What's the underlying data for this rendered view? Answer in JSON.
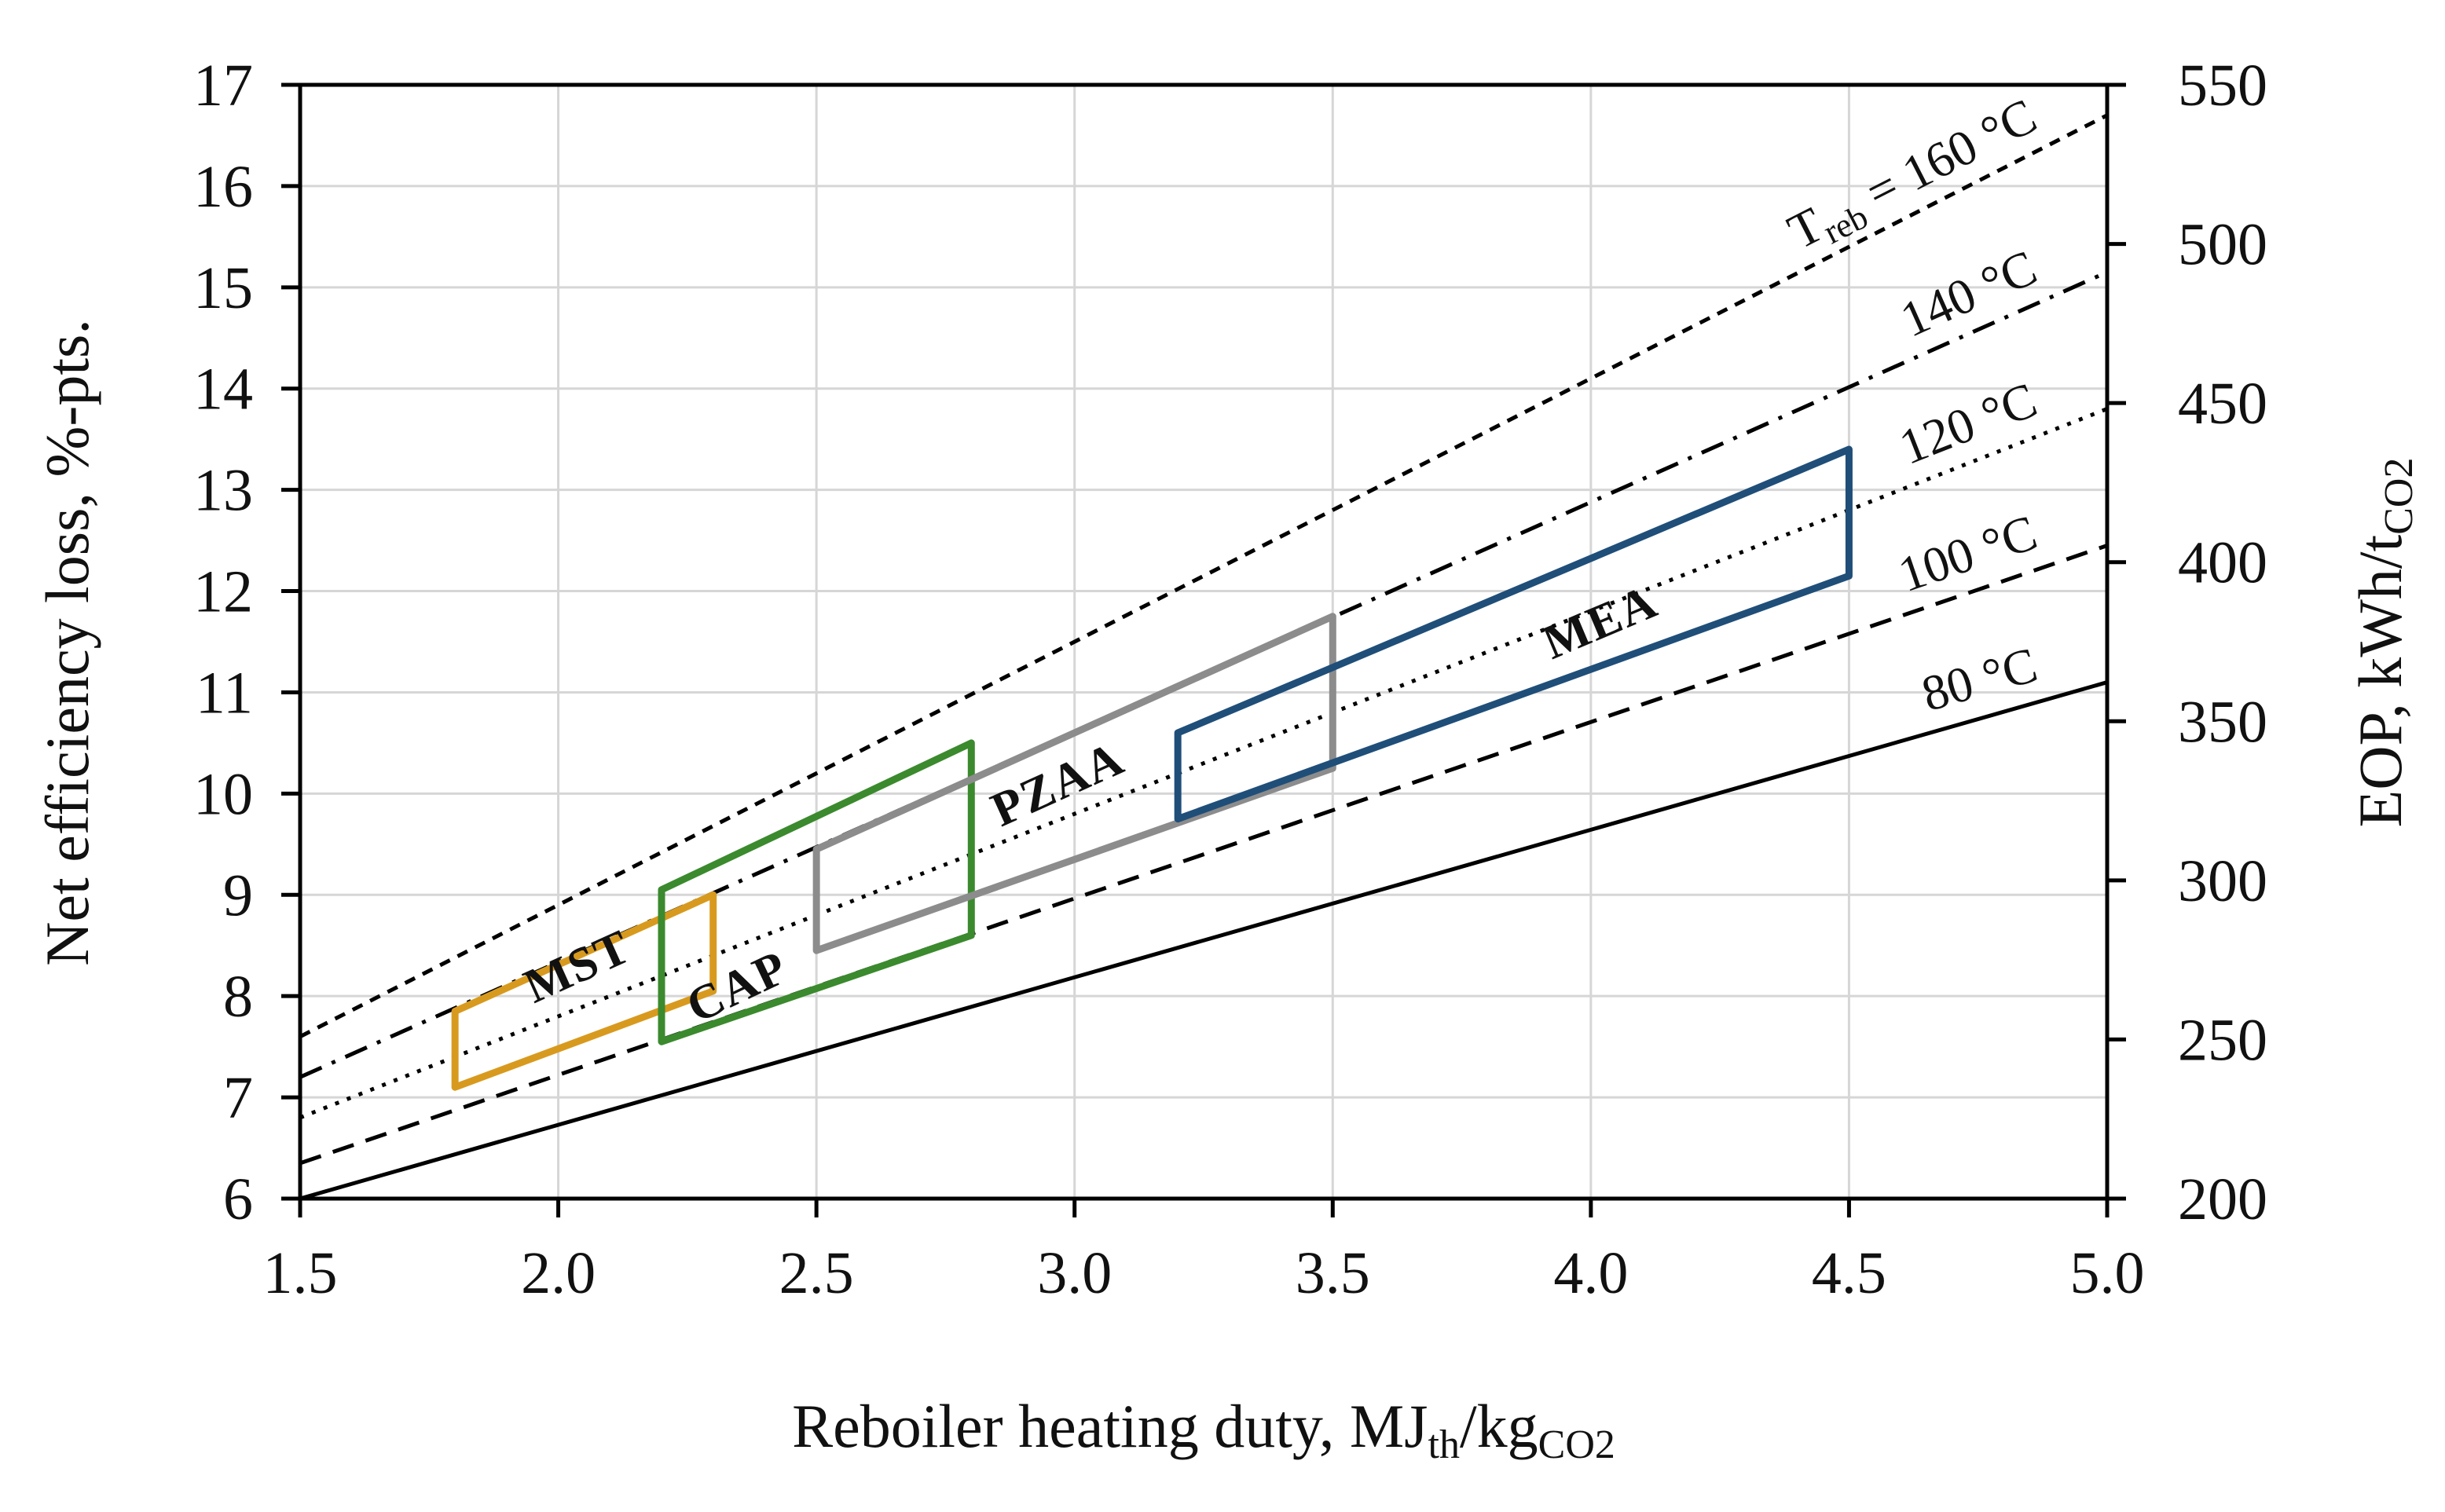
{
  "chart_data": {
    "type": "line",
    "x_axis": {
      "label": "Reboiler heating duty, MJ",
      "label_sub1": "th",
      "label_mid": "/kg",
      "label_sub2": "CO2",
      "range": [
        1.5,
        5.0
      ],
      "ticks": [
        "1.5",
        "2.0",
        "2.5",
        "3.0",
        "3.5",
        "4.0",
        "4.5",
        "5.0"
      ]
    },
    "y_axis_left": {
      "label": "Net efficiency loss, %-pts.",
      "range": [
        6,
        17
      ],
      "ticks": [
        "6",
        "7",
        "8",
        "9",
        "10",
        "11",
        "12",
        "13",
        "14",
        "15",
        "16",
        "17"
      ]
    },
    "y_axis_right": {
      "label": "EOP, kWh/t",
      "label_sub": "CO2",
      "range": [
        200,
        550
      ],
      "ticks": [
        "200",
        "250",
        "300",
        "350",
        "400",
        "450",
        "500",
        "550"
      ]
    },
    "grid": true,
    "series": [
      {
        "name": "80 °C",
        "style": "solid",
        "x": [
          1.5,
          5.0
        ],
        "y": [
          6.0,
          11.1
        ]
      },
      {
        "name": "100 °C",
        "style": "dashed",
        "x": [
          1.5,
          5.0
        ],
        "y": [
          6.35,
          12.45
        ]
      },
      {
        "name": "120 °C",
        "style": "dotted",
        "x": [
          1.5,
          5.0
        ],
        "y": [
          6.8,
          13.8
        ]
      },
      {
        "name": "140 °C",
        "style": "dashdot",
        "x": [
          1.5,
          5.0
        ],
        "y": [
          7.2,
          15.15
        ]
      },
      {
        "name": "160 °C",
        "style": "short-dashed",
        "x": [
          1.5,
          5.0
        ],
        "y": [
          7.6,
          16.7
        ]
      }
    ],
    "series_label_prefix": {
      "main": "T",
      "sub": "reb",
      "rest": " = "
    },
    "regions": [
      {
        "name": "MST",
        "color": "#d89a1e",
        "polygon": [
          [
            1.8,
            7.1
          ],
          [
            1.8,
            7.85
          ],
          [
            2.3,
            9.0
          ],
          [
            2.3,
            8.05
          ]
        ]
      },
      {
        "name": "CAP",
        "color": "#3b8a2e",
        "polygon": [
          [
            2.2,
            7.55
          ],
          [
            2.2,
            9.05
          ],
          [
            2.8,
            10.5
          ],
          [
            2.8,
            8.6
          ]
        ]
      },
      {
        "name": "PZAA",
        "color": "#8c8c8c",
        "polygon": [
          [
            2.5,
            8.45
          ],
          [
            2.5,
            9.45
          ],
          [
            3.5,
            11.75
          ],
          [
            3.5,
            10.25
          ]
        ]
      },
      {
        "name": "MEA",
        "color": "#1f4e79",
        "polygon": [
          [
            3.2,
            9.75
          ],
          [
            3.2,
            10.6
          ],
          [
            4.5,
            13.4
          ],
          [
            4.5,
            12.15
          ]
        ]
      }
    ]
  }
}
